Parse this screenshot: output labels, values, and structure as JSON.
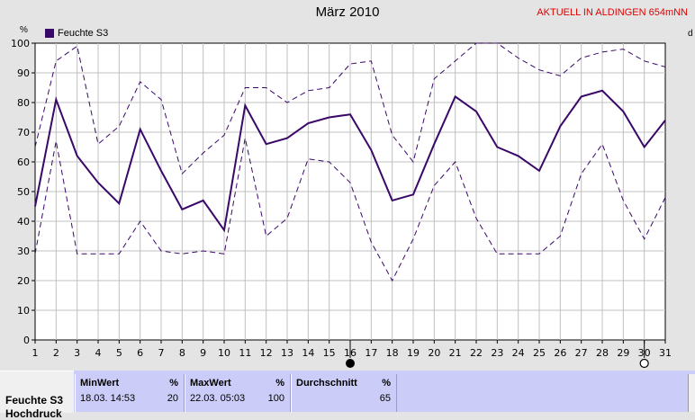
{
  "header": {
    "title": "März 2010",
    "banner": "AKTUELL IN ALDINGEN 654mNN",
    "unit_left": "%",
    "unit_right": "d"
  },
  "chart_data": {
    "type": "line",
    "title": "März 2010",
    "ylabel": "%",
    "xlabel": "",
    "x": [
      1,
      2,
      3,
      4,
      5,
      6,
      7,
      8,
      9,
      10,
      11,
      12,
      13,
      14,
      15,
      16,
      17,
      18,
      19,
      20,
      21,
      22,
      23,
      24,
      25,
      26,
      27,
      28,
      29,
      30,
      31
    ],
    "ylim": [
      0,
      100
    ],
    "yticks": [
      0,
      10,
      20,
      30,
      40,
      50,
      60,
      70,
      80,
      90,
      100
    ],
    "legend": "top-left",
    "grid": true,
    "series": [
      {
        "name": "Feuchte S3",
        "style": "solid",
        "color": "#3a0868",
        "values": [
          45,
          81,
          62,
          53,
          46,
          71,
          57,
          44,
          47,
          37,
          79,
          66,
          68,
          73,
          75,
          76,
          64,
          47,
          49,
          66,
          82,
          77,
          65,
          62,
          57,
          72,
          82,
          84,
          77,
          65,
          74
        ]
      },
      {
        "name": "",
        "style": "dashed",
        "color": "#3a0868",
        "values": [
          65,
          94,
          99,
          66,
          72,
          87,
          81,
          56,
          63,
          69,
          85,
          85,
          80,
          84,
          85,
          93,
          94,
          69,
          60,
          88,
          94,
          100,
          100,
          95,
          91,
          89,
          95,
          97,
          98,
          94,
          92
        ]
      },
      {
        "name": "",
        "style": "dashed",
        "color": "#3a0868",
        "values": [
          29,
          67,
          29,
          29,
          29,
          40,
          30,
          29,
          30,
          29,
          68,
          35,
          41,
          61,
          60,
          53,
          33,
          20,
          34,
          52,
          60,
          41,
          29,
          29,
          29,
          35,
          56,
          66,
          47,
          34,
          48
        ]
      }
    ],
    "markers": [
      {
        "x": 16,
        "symbol": "new-moon"
      },
      {
        "x": 30,
        "symbol": "full-moon"
      }
    ]
  },
  "stats": {
    "row_label_1": "Feuchte S3",
    "row_label_2": "Hochdruck",
    "min": {
      "label": "MinWert",
      "unit": "%",
      "time": "18.03.  14:53",
      "value": "20"
    },
    "max": {
      "label": "MaxWert",
      "unit": "%",
      "time": "22.03.  05:03",
      "value": "100"
    },
    "avg": {
      "label": "Durchschnitt",
      "unit": "%",
      "value": "65"
    }
  },
  "colors": {
    "line": "#3a0868",
    "background": "#e4e4e4",
    "plot_bg": "#ffffff",
    "grid": "#c0c0c0",
    "stats_bg": "#ccccf8",
    "banner": "#e00000"
  }
}
